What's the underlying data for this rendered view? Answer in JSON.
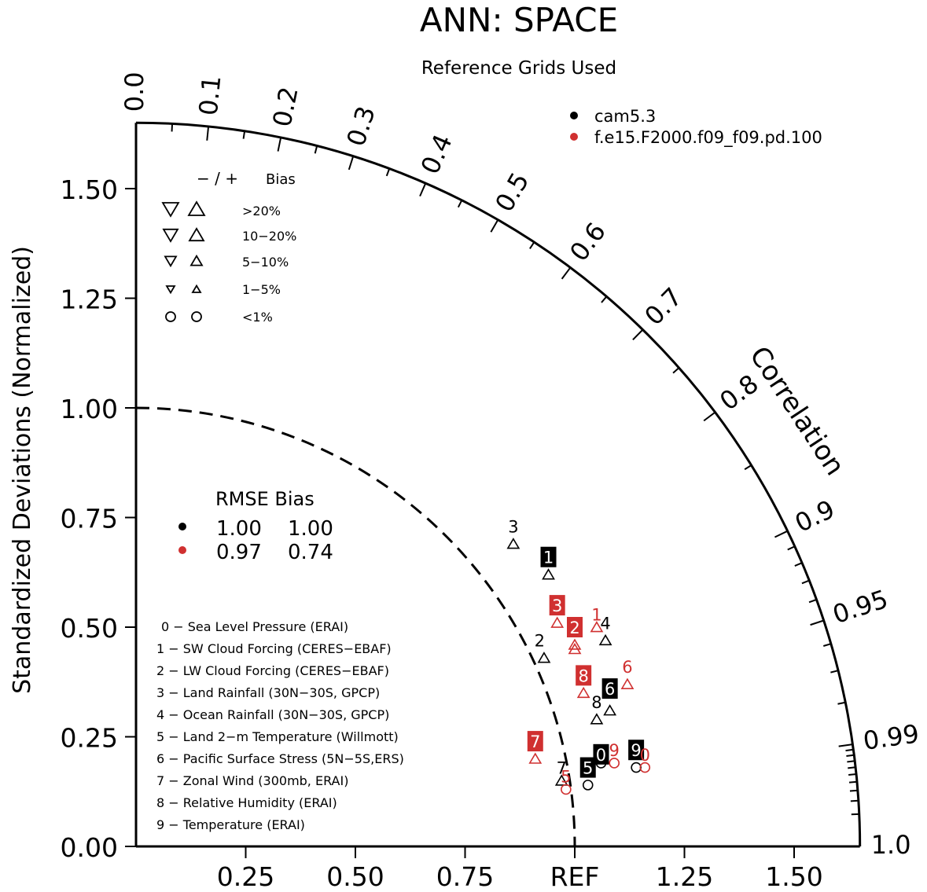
{
  "chart_data": {
    "type": "scatter",
    "subtype": "taylor-diagram",
    "title": "ANN: SPACE",
    "subtitle": "Reference Grids Used",
    "ylabel": "Standardized Deviations (Normalized)",
    "arc_label": "Correlation",
    "ref_label": "REF",
    "std_range": [
      0,
      1.65
    ],
    "y_ticks": [
      "0.00",
      "0.25",
      "0.50",
      "0.75",
      "1.00",
      "1.25",
      "1.50"
    ],
    "x_ticks": [
      "0.25",
      "0.50",
      "0.75",
      "REF",
      "1.25",
      "1.50"
    ],
    "corr_labels": [
      "0.0",
      "0.1",
      "0.2",
      "0.3",
      "0.4",
      "0.5",
      "0.6",
      "0.7",
      "0.8",
      "0.9",
      "0.95",
      "0.99",
      "1.0"
    ],
    "series": [
      {
        "name": "cam5.3",
        "color": "#000000",
        "points": [
          {
            "id": "0",
            "x": 1.06,
            "y": 0.19,
            "marker": "circle"
          },
          {
            "id": "1",
            "x": 0.94,
            "y": 0.62,
            "marker": "triangle-up"
          },
          {
            "id": "2",
            "x": 0.93,
            "y": 0.43,
            "marker": "triangle-up"
          },
          {
            "id": "3",
            "x": 0.86,
            "y": 0.69,
            "marker": "triangle-up"
          },
          {
            "id": "4",
            "x": 1.07,
            "y": 0.47,
            "marker": "triangle-up"
          },
          {
            "id": "5",
            "x": 1.03,
            "y": 0.14,
            "marker": "circle"
          },
          {
            "id": "6",
            "x": 1.08,
            "y": 0.31,
            "marker": "triangle-up"
          },
          {
            "id": "7",
            "x": 0.97,
            "y": 0.15,
            "marker": "triangle-up"
          },
          {
            "id": "8",
            "x": 1.05,
            "y": 0.29,
            "marker": "triangle-up"
          },
          {
            "id": "9",
            "x": 1.14,
            "y": 0.18,
            "marker": "circle"
          }
        ]
      },
      {
        "name": "f.e15.F2000.f09_f09.pd.100",
        "color": "#d03030",
        "points": [
          {
            "id": "0",
            "x": 1.16,
            "y": 0.18,
            "marker": "circle"
          },
          {
            "id": "1",
            "x": 1.05,
            "y": 0.5,
            "marker": "triangle-up"
          },
          {
            "id": "2",
            "x": 1.0,
            "y": 0.46,
            "marker": "triangle-up"
          },
          {
            "id": "3",
            "x": 0.96,
            "y": 0.51,
            "marker": "triangle-up"
          },
          {
            "id": "4",
            "x": 1.0,
            "y": 0.45,
            "marker": "triangle-up"
          },
          {
            "id": "5",
            "x": 0.98,
            "y": 0.13,
            "marker": "circle"
          },
          {
            "id": "6",
            "x": 1.12,
            "y": 0.37,
            "marker": "triangle-up"
          },
          {
            "id": "7",
            "x": 0.91,
            "y": 0.2,
            "marker": "triangle-up"
          },
          {
            "id": "8",
            "x": 1.02,
            "y": 0.35,
            "marker": "triangle-up"
          },
          {
            "id": "9",
            "x": 1.09,
            "y": 0.19,
            "marker": "circle"
          }
        ]
      }
    ],
    "number_labels": [
      {
        "id": "0",
        "x": 1.06,
        "y": 0.21,
        "color": "#000000",
        "style": "boxed"
      },
      {
        "id": "1",
        "x": 0.94,
        "y": 0.66,
        "color": "#000000",
        "style": "boxed"
      },
      {
        "id": "2",
        "x": 0.92,
        "y": 0.47,
        "color": "#000000",
        "style": "plain"
      },
      {
        "id": "3",
        "x": 0.86,
        "y": 0.73,
        "color": "#000000",
        "style": "plain"
      },
      {
        "id": "4",
        "x": 1.07,
        "y": 0.51,
        "color": "#000000",
        "style": "plain"
      },
      {
        "id": "5",
        "x": 1.03,
        "y": 0.18,
        "color": "#000000",
        "style": "boxed"
      },
      {
        "id": "6",
        "x": 1.08,
        "y": 0.36,
        "color": "#000000",
        "style": "boxed"
      },
      {
        "id": "7",
        "x": 0.97,
        "y": 0.18,
        "color": "#000000",
        "style": "plain"
      },
      {
        "id": "8",
        "x": 1.05,
        "y": 0.33,
        "color": "#000000",
        "style": "plain"
      },
      {
        "id": "9",
        "x": 1.14,
        "y": 0.22,
        "color": "#000000",
        "style": "boxed"
      },
      {
        "id": "0",
        "x": 1.16,
        "y": 0.21,
        "color": "#d03030",
        "style": "plain"
      },
      {
        "id": "1",
        "x": 1.05,
        "y": 0.53,
        "color": "#d03030",
        "style": "plain"
      },
      {
        "id": "2",
        "x": 1.0,
        "y": 0.5,
        "color": "#d03030",
        "style": "boxed"
      },
      {
        "id": "3",
        "x": 0.96,
        "y": 0.55,
        "color": "#d03030",
        "style": "boxed"
      },
      {
        "id": "5",
        "x": 0.98,
        "y": 0.16,
        "color": "#d03030",
        "style": "plain"
      },
      {
        "id": "6",
        "x": 1.12,
        "y": 0.41,
        "color": "#d03030",
        "style": "plain"
      },
      {
        "id": "7",
        "x": 0.91,
        "y": 0.24,
        "color": "#d03030",
        "style": "boxed"
      },
      {
        "id": "8",
        "x": 1.02,
        "y": 0.39,
        "color": "#d03030",
        "style": "boxed"
      },
      {
        "id": "9",
        "x": 1.09,
        "y": 0.22,
        "color": "#d03030",
        "style": "plain"
      }
    ],
    "legend_models": [
      {
        "name": "cam5.3",
        "color": "#000000"
      },
      {
        "name": "f.e15.F2000.f09_f09.pd.100",
        "color": "#d03030"
      }
    ],
    "bias_legend": {
      "header_sign": "− / +",
      "header_title": "Bias",
      "rows": [
        {
          "label": ">20%",
          "shape": "triangle"
        },
        {
          "label": "10−20%",
          "shape": "triangle"
        },
        {
          "label": "5−10%",
          "shape": "triangle"
        },
        {
          "label": "1−5%",
          "shape": "triangle"
        },
        {
          "label": "<1%",
          "shape": "circle"
        }
      ]
    },
    "rmse_table": {
      "header": "RMSE Bias",
      "rows": [
        {
          "color": "#000000",
          "rmse": "1.00",
          "bias": "1.00"
        },
        {
          "color": "#d03030",
          "rmse": "0.97",
          "bias": "0.74"
        }
      ]
    },
    "variables": [
      "0 − Sea Level Pressure (ERAI)",
      "1 − SW Cloud Forcing (CERES−EBAF)",
      "2 − LW Cloud Forcing (CERES−EBAF)",
      "3 − Land Rainfall (30N−30S, GPCP)",
      "4 − Ocean Rainfall (30N−30S, GPCP)",
      "5 − Land 2−m Temperature (Willmott)",
      "6 − Pacific Surface Stress (5N−5S,ERS)",
      "7 − Zonal Wind (300mb, ERAI)",
      "8 − Relative Humidity (ERAI)",
      "9 − Temperature (ERAI)"
    ]
  }
}
